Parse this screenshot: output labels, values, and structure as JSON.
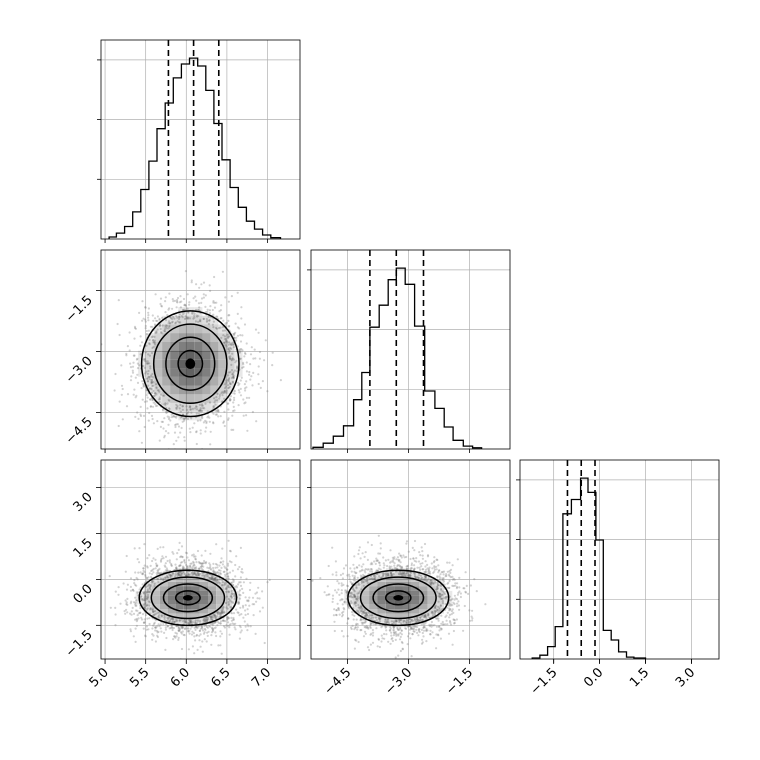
{
  "chart_data": {
    "type": "corner",
    "grid": true,
    "colors": {
      "line": "#000000",
      "grid": "#b0b0b0",
      "points": "#7f7f7f",
      "density": "#000000"
    },
    "params": [
      {
        "range": [
          4.95,
          7.4
        ],
        "ticks": [
          5.0,
          5.5,
          6.0,
          6.5,
          7.0
        ],
        "tick_labels": [
          "5.0",
          "5.5",
          "6.0",
          "6.5",
          "7.0"
        ],
        "quantiles": [
          5.78,
          6.09,
          6.4
        ],
        "hist_edges": [
          5.05,
          5.14,
          5.24,
          5.34,
          5.44,
          5.54,
          5.64,
          5.74,
          5.84,
          5.94,
          6.04,
          6.14,
          6.24,
          6.34,
          6.44,
          6.54,
          6.64,
          6.74,
          6.84,
          6.94,
          7.04,
          7.16
        ],
        "hist_counts": [
          3,
          9,
          19,
          41,
          75,
          118,
          167,
          206,
          244,
          265,
          274,
          262,
          225,
          175,
          120,
          78,
          48,
          27,
          15,
          6,
          2
        ]
      },
      {
        "range": [
          -5.4,
          -0.5
        ],
        "ticks": [
          -4.5,
          -3.0,
          -1.5
        ],
        "tick_labels": [
          "−4.5",
          "−3.0",
          "−1.5"
        ],
        "quantiles": [
          -3.95,
          -3.3,
          -2.63
        ],
        "hist_edges": [
          -5.35,
          -5.1,
          -4.85,
          -4.6,
          -4.35,
          -4.15,
          -3.95,
          -3.72,
          -3.5,
          -3.3,
          -3.08,
          -2.85,
          -2.6,
          -2.35,
          -2.12,
          -1.9,
          -1.65,
          -1.42,
          -1.2
        ],
        "hist_counts": [
          3,
          10,
          22,
          40,
          85,
          132,
          210,
          248,
          292,
          312,
          284,
          212,
          100,
          70,
          38,
          15,
          5,
          2
        ]
      },
      {
        "range": [
          -2.6,
          3.9
        ],
        "ticks": [
          -1.5,
          0.0,
          1.5,
          3.0
        ],
        "tick_labels": [
          "−1.5",
          "0.0",
          "1.5",
          "3.0"
        ],
        "quantiles": [
          -1.05,
          -0.6,
          -0.15
        ],
        "hist_edges": [
          -2.2,
          -1.95,
          -1.7,
          -1.45,
          -1.2,
          -0.92,
          -0.62,
          -0.38,
          -0.12,
          0.12,
          0.38,
          0.62,
          0.88,
          1.12,
          1.5
        ],
        "hist_counts": [
          2,
          8,
          26,
          68,
          305,
          335,
          380,
          350,
          250,
          60,
          40,
          15,
          4,
          2
        ]
      }
    ],
    "pairs": [
      {
        "x": 0,
        "y": 1,
        "center": [
          6.05,
          -3.3
        ],
        "sigma": [
          0.3,
          0.65
        ]
      },
      {
        "x": 0,
        "y": 2,
        "center": [
          6.02,
          -0.6
        ],
        "sigma": [
          0.3,
          0.45
        ]
      },
      {
        "x": 1,
        "y": 2,
        "center": [
          -3.25,
          -0.6
        ],
        "sigma": [
          0.62,
          0.45
        ]
      }
    ]
  }
}
